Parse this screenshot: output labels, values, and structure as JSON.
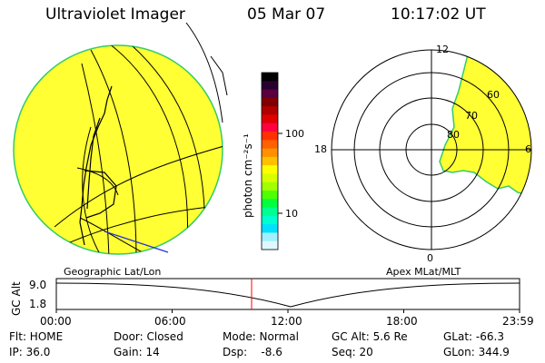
{
  "header": {
    "instrument": "Ultraviolet Imager",
    "date": "05 Mar 07",
    "time": "10:17:02 UT"
  },
  "left_panel": {
    "caption": "Geographic Lat/Lon"
  },
  "right_panel": {
    "caption": "Apex MLat/MLT",
    "mlt_labels": [
      "12",
      "18",
      "6",
      "0"
    ],
    "mlat_labels": [
      "60",
      "70",
      "80"
    ]
  },
  "colorbar": {
    "unit_label": "photon cm⁻²s⁻¹",
    "ticks": [
      "100",
      "10"
    ],
    "colors": [
      "#000000",
      "#2a0030",
      "#5a0040",
      "#800000",
      "#b00000",
      "#e00000",
      "#ff0040",
      "#ff3000",
      "#ff6000",
      "#ff9000",
      "#ffc000",
      "#ffff00",
      "#d8ff00",
      "#a0ff00",
      "#50ff00",
      "#00ff40",
      "#00ff90",
      "#00ffd0",
      "#00e0ff",
      "#a0f0ff",
      "#e0f8ff"
    ]
  },
  "altitude_plot": {
    "label": "GC Alt",
    "ytick_top": "9.0",
    "ytick_bottom": "1.8",
    "xticks": [
      "00:00",
      "06:00",
      "12:00",
      "18:00",
      "23:59"
    ],
    "current_time_marker": "10:17"
  },
  "status": {
    "row1": [
      "Flt: HOME",
      "Door: Closed",
      "Mode: Normal",
      "GC Alt: 5.6 Re",
      "GLat: -66.3"
    ],
    "row2": [
      "IP: 36.0",
      "Gain: 14",
      "Dsp:    -8.6",
      "Seq: 20",
      "GLon: 344.9"
    ]
  },
  "colors": {
    "aurora_fill": "#ffff33",
    "aurora_edge": "#33cc66",
    "marker": "#ff0000"
  }
}
